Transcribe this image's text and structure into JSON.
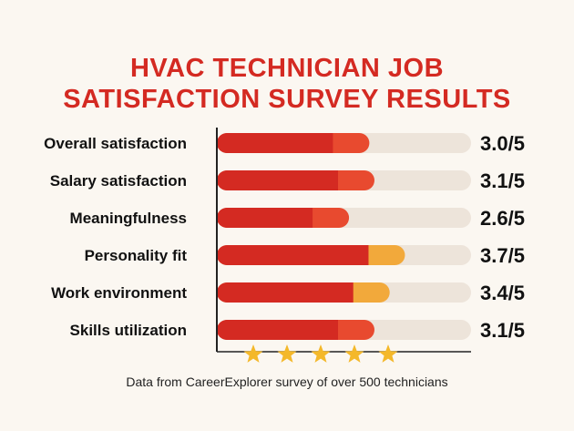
{
  "title_lines": [
    "HVAC TECHNICIAN JOB",
    "SATISFACTION SURVEY RESULTS"
  ],
  "footnote": "Data from CareerExplorer survey of over 500 technicians",
  "chart_data": {
    "type": "bar",
    "orientation": "horizontal",
    "categories": [
      "Overall satisfaction",
      "Salary satisfaction",
      "Meaningfulness",
      "Personality fit",
      "Work environment",
      "Skills utilization"
    ],
    "values": [
      3.0,
      3.1,
      2.6,
      3.7,
      3.4,
      3.1
    ],
    "value_labels": [
      "3.0/5",
      "3.1/5",
      "2.6/5",
      "3.7/5",
      "3.4/5",
      "3.1/5"
    ],
    "xlim": [
      0,
      5
    ],
    "star_count": 5,
    "colors": {
      "bar_main": "#d42a22",
      "bar_tip_red": "#e84a2f",
      "bar_tip_orange": "#f2a93b",
      "track": "#ede4da",
      "star": "#f4b82a",
      "axis": "#222222"
    },
    "tip_colors": [
      "red",
      "red",
      "red",
      "orange",
      "orange",
      "red"
    ]
  }
}
